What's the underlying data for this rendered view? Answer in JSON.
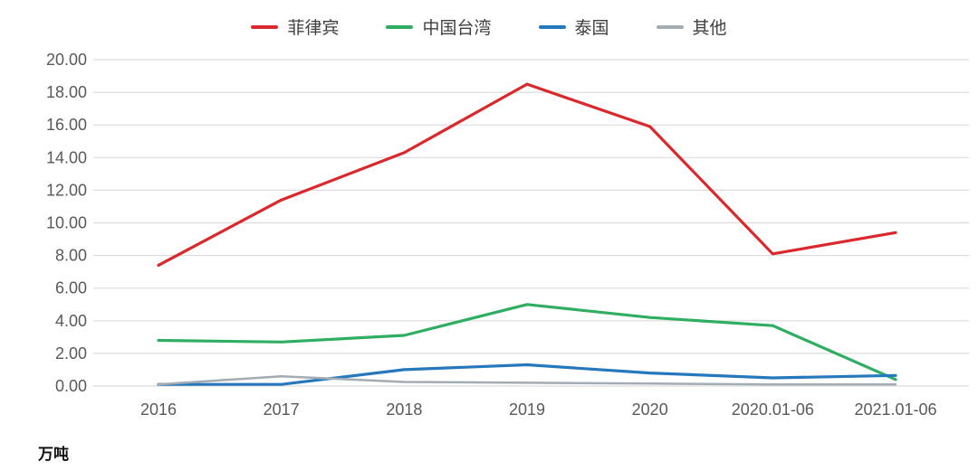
{
  "page": {
    "background": "#ffffff"
  },
  "chart_data": {
    "type": "line",
    "title": "",
    "xlabel": "",
    "ylabel": "万吨",
    "categories": [
      "2016",
      "2017",
      "2018",
      "2019",
      "2020",
      "2020.01-06",
      "2021.01-06"
    ],
    "series": [
      {
        "name": "菲律宾",
        "color": "#d9292d",
        "values": [
          7.4,
          11.4,
          14.3,
          18.5,
          15.9,
          8.1,
          9.4
        ]
      },
      {
        "name": "中国台湾",
        "color": "#2fae62",
        "values": [
          2.8,
          2.7,
          3.1,
          5.0,
          4.2,
          3.7,
          0.4
        ]
      },
      {
        "name": "泰国",
        "color": "#2678bd",
        "values": [
          0.1,
          0.1,
          1.0,
          1.3,
          0.8,
          0.5,
          0.65
        ]
      },
      {
        "name": "其他",
        "color": "#a3abb3",
        "values": [
          0.1,
          0.6,
          0.25,
          0.2,
          0.15,
          0.1,
          0.1
        ]
      }
    ],
    "ylim": [
      0,
      20
    ],
    "ytick_step": 2,
    "ytick_labels": [
      "0.00",
      "2.00",
      "4.00",
      "6.00",
      "8.00",
      "10.00",
      "12.00",
      "14.00",
      "16.00",
      "18.00",
      "20.00"
    ],
    "grid": "horizontal",
    "legend_position": "top-center",
    "gridline_color": "#dcdcdc",
    "axis_label_color": "#595959"
  }
}
